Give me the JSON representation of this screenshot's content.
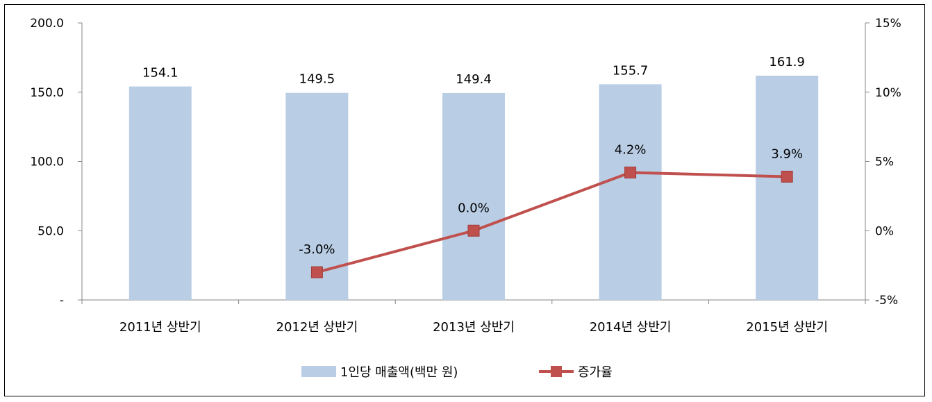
{
  "chart_data": {
    "type": "bar",
    "categories": [
      "2011년 상반기",
      "2012년 상반기",
      "2013년 상반기",
      "2014년 상반기",
      "2015년 상반기"
    ],
    "series": [
      {
        "name": "1인당 매출액(백만 원)",
        "type": "bar",
        "axis": "left",
        "values": [
          154.1,
          149.5,
          149.4,
          155.7,
          161.9
        ],
        "labels": [
          "154.1",
          "149.5",
          "149.4",
          "155.7",
          "161.9"
        ],
        "color": "#b9cde5"
      },
      {
        "name": "증가율",
        "type": "line",
        "axis": "right",
        "values": [
          null,
          -3.0,
          0.0,
          4.2,
          3.9
        ],
        "labels": [
          "",
          "-3.0%",
          "0.0%",
          "4.2%",
          "3.9%"
        ],
        "color": "#c0504d"
      }
    ],
    "y_left": {
      "range": [
        0,
        200
      ],
      "ticks": [
        0,
        50,
        100,
        150,
        200
      ],
      "tick_labels": [
        "-",
        "50.0",
        "100.0",
        "150.0",
        "200.0"
      ]
    },
    "y_right": {
      "range": [
        -5,
        15
      ],
      "ticks": [
        -5,
        0,
        5,
        10,
        15
      ],
      "tick_labels": [
        "-5%",
        "0%",
        "5%",
        "10%",
        "15%"
      ]
    },
    "grid": false,
    "legend_position": "bottom"
  }
}
